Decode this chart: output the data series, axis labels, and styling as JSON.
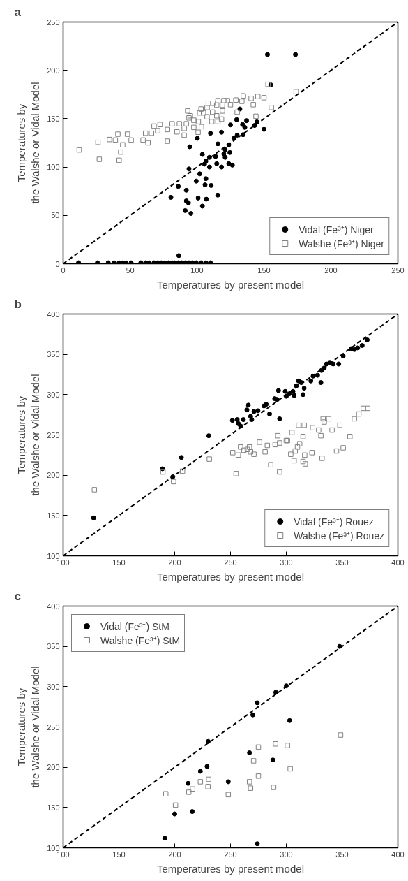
{
  "chart_data": [
    {
      "type": "scatter",
      "title": "a",
      "xlabel": "Temperatures by present model",
      "ylabel": "Temperatures by\nthe Walshe or Vidal Model",
      "xlim": [
        0,
        250
      ],
      "ylim": [
        0,
        250
      ],
      "xticks": [
        0,
        50,
        100,
        150,
        200,
        250
      ],
      "yticks": [
        0,
        50,
        100,
        150,
        200,
        250
      ],
      "grid": false,
      "legend": "bottom right",
      "series": [
        {
          "name": "Vidal (Fe³⁺) Niger",
          "color": "#000000",
          "marker": "circle",
          "x": [
            152.6,
            173.5,
            155,
            150,
            144.7,
            143,
            137,
            134,
            135.7,
            129.6,
            125,
            132,
            134.4,
            130,
            127.8,
            123.7,
            121,
            124.5,
            120,
            118.3,
            115.6,
            110,
            100.3,
            94.5,
            104,
            106.6,
            109.3,
            113.8,
            114.7,
            109.3,
            105.6,
            118.3,
            123.7,
            126.4,
            121,
            94,
            102,
            99.4,
            106.6,
            106,
            110.5,
            86,
            92,
            80.5,
            92,
            100.8,
            106.9,
            104,
            115.5,
            93.6,
            91.2,
            95.4,
            86.4,
            11.5,
            25.6,
            33.7,
            38,
            41.8,
            44.5,
            47,
            50.8,
            58,
            61.6,
            64.3,
            67.9,
            70.6,
            73.3,
            76,
            78.7,
            81.4,
            83.2,
            86,
            88.6,
            91.2,
            94,
            96.7,
            99.4,
            103,
            106.6,
            110
          ],
          "values": [
            216.4,
            216.4,
            185,
            139,
            146.7,
            143,
            148,
            144,
            141,
            149,
            143.6,
            160,
            133.5,
            133,
            130,
            123,
            118,
            115,
            113.6,
            136,
            124,
            135,
            129.7,
            121,
            113,
            106,
            110,
            111,
            103.5,
            100,
            103,
            100,
            103.5,
            102,
            110,
            98,
            93,
            85.5,
            88,
            81.6,
            81,
            80,
            76,
            68.7,
            65,
            68,
            66.8,
            59.6,
            71,
            63,
            55,
            52,
            8.4,
            1,
            1,
            1,
            1,
            1,
            1,
            1,
            1,
            1,
            1,
            1,
            1,
            1,
            1,
            1,
            1,
            1,
            1,
            1,
            1,
            1,
            1,
            1,
            1,
            1,
            1,
            1
          ]
        },
        {
          "name": "Walshe (Fe³⁺) Niger",
          "color": "#808080",
          "marker": "square",
          "x": [
            153,
            174,
            155.5,
            150,
            145.4,
            142,
            144,
            140.4,
            134.6,
            133.5,
            129,
            130,
            125,
            122.7,
            120,
            119,
            115.6,
            114.7,
            112,
            108.4,
            107.5,
            103,
            104.8,
            102,
            111.6,
            114.7,
            119,
            118.3,
            115.6,
            111,
            107.5,
            101,
            97.6,
            95,
            93,
            94,
            92,
            97.6,
            103.3,
            100.8,
            90.4,
            90.4,
            86.8,
            85,
            81.4,
            78,
            72.4,
            67.9,
            70.6,
            66,
            61.6,
            59.7,
            63.4,
            50.8,
            48,
            40.9,
            39,
            34.6,
            44.5,
            43,
            41.8,
            78,
            26,
            27,
            12
          ],
          "values": [
            185.6,
            178,
            161.6,
            171.7,
            173,
            164.5,
            152.5,
            171,
            173.6,
            168,
            169.3,
            156.8,
            164.5,
            168.7,
            168.7,
            164,
            168.7,
            164,
            166,
            166,
            161.6,
            160,
            156,
            156,
            156.8,
            153,
            158,
            149.6,
            147,
            147,
            152,
            147,
            148.4,
            153,
            158,
            150.8,
            144.8,
            141,
            141.7,
            136,
            140,
            133,
            144.8,
            136.4,
            144.8,
            138.8,
            144,
            142.4,
            137.6,
            135,
            135,
            128,
            125,
            128,
            134,
            134,
            128,
            128.5,
            123,
            115.5,
            107,
            126.8,
            125.6,
            108,
            117.7
          ]
        },
        {
          "type": "line",
          "color": "#000000",
          "line_style": "dashed",
          "x": [
            0,
            250
          ],
          "values": [
            0,
            250
          ]
        }
      ]
    },
    {
      "type": "scatter",
      "title": "b",
      "xlabel": "Temperatures by present model",
      "ylabel": "Temperatures by\nthe Walshe or Vidal Model",
      "xlim": [
        100,
        400
      ],
      "ylim": [
        100,
        400
      ],
      "xticks": [
        100,
        150,
        200,
        250,
        300,
        350,
        400
      ],
      "yticks": [
        100,
        150,
        200,
        250,
        300,
        350,
        400
      ],
      "grid": false,
      "legend": "bottom right",
      "series": [
        {
          "name": "Vidal (Fe³⁺) Rouez",
          "color": "#000000",
          "marker": "circle",
          "x": [
            127.3,
            189,
            198.3,
            206,
            230.5,
            251.7,
            256,
            257,
            259,
            261.5,
            264.7,
            266,
            268,
            269,
            271,
            274.6,
            280,
            282,
            285,
            289.6,
            291.8,
            293,
            294,
            299,
            300,
            302.6,
            306,
            307,
            309,
            311,
            313.4,
            315,
            316,
            322,
            324,
            328,
            331,
            331.5,
            334,
            336,
            339,
            342,
            347,
            351,
            358,
            361,
            364,
            368,
            372.5
          ],
          "values": [
            147,
            208,
            198,
            222,
            249,
            268,
            269,
            264,
            261,
            269,
            281,
            287,
            273,
            269,
            279,
            280,
            286,
            288,
            276,
            295,
            294,
            305,
            270,
            304,
            298,
            301,
            304,
            299,
            311,
            317,
            315,
            300,
            308,
            317,
            323,
            324,
            315,
            330,
            333,
            338,
            340,
            338,
            338,
            348,
            357,
            356,
            358,
            361,
            368
          ]
        },
        {
          "name": "Walshe (Fe³⁺) Rouez",
          "color": "#808080",
          "marker": "square",
          "x": [
            128,
            189.4,
            199,
            207,
            231,
            252,
            255,
            257,
            259,
            262,
            265,
            267,
            268,
            271,
            276,
            281,
            283,
            286,
            290,
            292.4,
            294,
            294,
            300,
            301,
            304,
            305,
            307,
            308,
            310,
            311,
            312,
            315,
            316,
            316.5,
            315,
            317,
            323,
            323.6,
            329,
            331,
            332,
            333,
            334,
            338,
            341,
            345,
            348,
            351,
            357,
            361,
            365,
            369,
            373
          ],
          "values": [
            182,
            204,
            192,
            205,
            220,
            228,
            202,
            225,
            235,
            231,
            232,
            235,
            229,
            226,
            241,
            229,
            237,
            213,
            238,
            249,
            240,
            204,
            243,
            243,
            226,
            253,
            218,
            230,
            235,
            262,
            239,
            248,
            262,
            225,
            217,
            214,
            228,
            259,
            256,
            249,
            221,
            270,
            266,
            270,
            256,
            230,
            262,
            234,
            248,
            270,
            276,
            283,
            283
          ]
        },
        {
          "type": "line",
          "color": "#000000",
          "line_style": "dashed",
          "x": [
            100,
            400
          ],
          "values": [
            100,
            400
          ]
        }
      ]
    },
    {
      "type": "scatter",
      "title": "c",
      "xlabel": "Temperatures by present model",
      "ylabel": "Temperatures by\nthe Walshe or Vidal Model",
      "xlim": [
        100,
        400
      ],
      "ylim": [
        100,
        400
      ],
      "xticks": [
        100,
        150,
        200,
        250,
        300,
        350,
        400
      ],
      "yticks": [
        100,
        150,
        200,
        250,
        300,
        350,
        400
      ],
      "grid": false,
      "legend": "top left",
      "series": [
        {
          "name": "Vidal (Fe³⁺) StM",
          "color": "#000000",
          "marker": "circle",
          "x": [
            347.8,
            300,
            290.6,
            274,
            270,
            303,
            230,
            267,
            288,
            229,
            223,
            212,
            248,
            215.7,
            200,
            191,
            274
          ],
          "values": [
            350,
            301,
            293,
            280,
            265,
            258,
            232,
            218,
            209,
            201,
            195,
            180,
            182,
            145,
            142,
            112,
            105
          ]
        },
        {
          "name": "Walshe (Fe³⁺) StM",
          "color": "#808080",
          "marker": "square",
          "x": [
            348.7,
            275,
            290.4,
            301,
            270.7,
            303.5,
            275,
            230.4,
            223,
            229.8,
            216,
            212.6,
            192,
            200.7,
            248,
            267,
            268,
            288.7
          ],
          "values": [
            240,
            225,
            229,
            227,
            208,
            198,
            189,
            185,
            182,
            176,
            173,
            169,
            167,
            153,
            166,
            182,
            174,
            175
          ]
        },
        {
          "type": "line",
          "color": "#000000",
          "line_style": "dashed",
          "x": [
            100,
            400
          ],
          "values": [
            100,
            400
          ]
        }
      ]
    }
  ]
}
